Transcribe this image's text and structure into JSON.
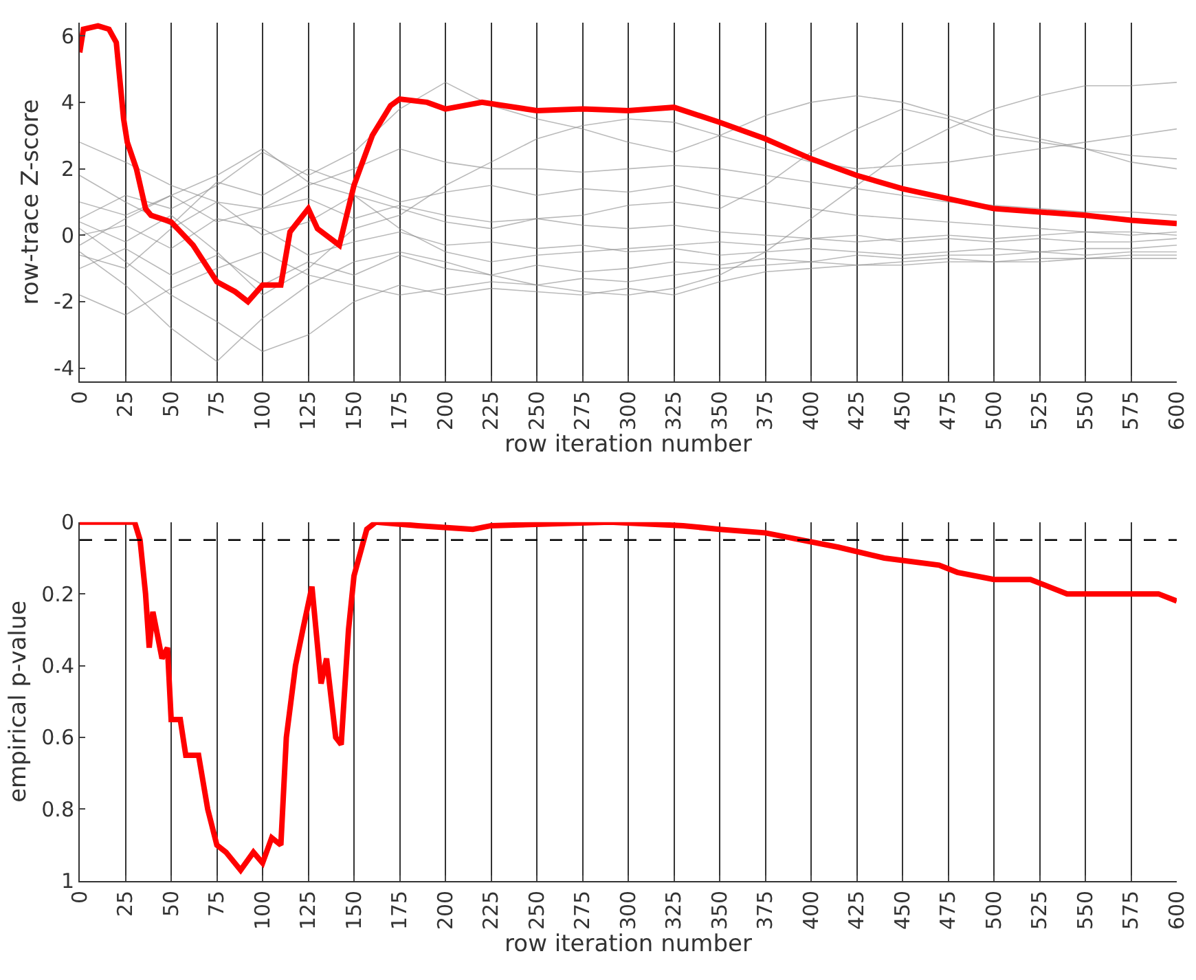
{
  "chart_data": [
    {
      "type": "line",
      "xlabel": "row iteration number",
      "ylabel": "row-trace Z-score",
      "xlim": [
        0,
        600
      ],
      "xticks": [
        0,
        25,
        50,
        75,
        100,
        125,
        150,
        175,
        200,
        225,
        250,
        275,
        300,
        325,
        350,
        375,
        400,
        425,
        450,
        475,
        500,
        525,
        550,
        575,
        600
      ],
      "ylim": [
        -4.4,
        6.4
      ],
      "yticks": [
        -4,
        -2,
        0,
        2,
        4,
        6
      ],
      "grid": "x",
      "series": [
        {
          "color": "#8c8c8c",
          "x": [
            0,
            25,
            50,
            75,
            100,
            125,
            150,
            175,
            200,
            225,
            250,
            275,
            300,
            325,
            350,
            375,
            400,
            425,
            450,
            475,
            500,
            525,
            550,
            575,
            600
          ],
          "values": [
            0.5,
            1.2,
            0.8,
            1.5,
            2.5,
            1.8,
            2.5,
            3.8,
            4.6,
            3.9,
            3.5,
            3.2,
            2.8,
            2.5,
            3.0,
            3.6,
            4.0,
            4.2,
            4.0,
            3.6,
            3.2,
            2.9,
            2.6,
            2.4,
            2.3
          ]
        },
        {
          "color": "#8c8c8c",
          "x": [
            0,
            25,
            50,
            75,
            100,
            125,
            150,
            175,
            200,
            225,
            250,
            275,
            300,
            325,
            350,
            375,
            400,
            425,
            450,
            475,
            500,
            525,
            550,
            575,
            600
          ],
          "values": [
            -0.5,
            -1.5,
            -2.8,
            -3.8,
            -2.5,
            -1.5,
            -0.8,
            -0.5,
            -0.8,
            -1.2,
            -1.5,
            -1.7,
            -1.8,
            -1.6,
            -1.2,
            -0.5,
            0.5,
            1.5,
            2.5,
            3.2,
            3.8,
            4.2,
            4.5,
            4.5,
            4.6
          ]
        },
        {
          "color": "#8c8c8c",
          "x": [
            0,
            25,
            50,
            75,
            100,
            125,
            150,
            175,
            200,
            225,
            250,
            275,
            300,
            325,
            350,
            375,
            400,
            425,
            450,
            475,
            500,
            525,
            550,
            575,
            600
          ],
          "values": [
            2.8,
            2.2,
            1.5,
            1.0,
            0.8,
            1.5,
            2.0,
            2.6,
            2.2,
            2.0,
            2.0,
            1.9,
            2.0,
            2.1,
            2.0,
            1.8,
            1.6,
            1.4,
            1.2,
            1.0,
            0.9,
            0.8,
            0.7,
            0.7,
            0.6
          ]
        },
        {
          "color": "#8c8c8c",
          "x": [
            0,
            25,
            50,
            75,
            100,
            125,
            150,
            175,
            200,
            225,
            250,
            275,
            300,
            325,
            350,
            375,
            400,
            425,
            450,
            475,
            500,
            525,
            550,
            575,
            600
          ],
          "values": [
            0.2,
            -0.8,
            -1.8,
            -2.6,
            -3.5,
            -3.0,
            -2.0,
            -1.5,
            -1.8,
            -1.6,
            -1.7,
            -1.8,
            -1.6,
            -1.8,
            -1.4,
            -1.1,
            -1.0,
            -0.9,
            -0.9,
            -0.8,
            -0.8,
            -0.8,
            -0.7,
            -0.7,
            -0.7
          ]
        },
        {
          "color": "#8c8c8c",
          "x": [
            0,
            25,
            50,
            75,
            100,
            125,
            150,
            175,
            200,
            225,
            250,
            275,
            300,
            325,
            350,
            375,
            400,
            425,
            450,
            475,
            500,
            525,
            550,
            575,
            600
          ],
          "values": [
            -0.3,
            0.5,
            1.2,
            1.8,
            2.6,
            1.6,
            1.2,
            0.8,
            0.4,
            0.2,
            0.5,
            0.6,
            0.9,
            1.0,
            0.8,
            1.5,
            2.5,
            3.2,
            3.8,
            3.5,
            3.0,
            2.8,
            2.6,
            2.2,
            2.0
          ]
        },
        {
          "color": "#8c8c8c",
          "x": [
            0,
            25,
            50,
            75,
            100,
            125,
            150,
            175,
            200,
            225,
            250,
            275,
            300,
            325,
            350,
            375,
            400,
            425,
            450,
            475,
            500,
            525,
            550,
            575,
            600
          ],
          "values": [
            0.0,
            0.3,
            -0.4,
            0.5,
            0.2,
            -0.6,
            -0.2,
            0.1,
            -0.3,
            -0.2,
            -0.4,
            -0.3,
            -0.5,
            -0.4,
            -0.6,
            -0.5,
            -0.4,
            -0.5,
            -0.6,
            -0.5,
            -0.4,
            -0.5,
            -0.4,
            -0.4,
            -0.3
          ]
        },
        {
          "color": "#8c8c8c",
          "x": [
            0,
            25,
            50,
            75,
            100,
            125,
            150,
            175,
            200,
            225,
            250,
            275,
            300,
            325,
            350,
            375,
            400,
            425,
            450,
            475,
            500,
            525,
            550,
            575,
            600
          ],
          "values": [
            1.0,
            0.6,
            1.2,
            0.4,
            0.8,
            1.1,
            0.5,
            0.9,
            0.6,
            0.4,
            0.5,
            0.3,
            0.2,
            0.3,
            0.1,
            0.0,
            -0.1,
            0.0,
            -0.2,
            -0.1,
            -0.2,
            -0.1,
            -0.2,
            -0.2,
            -0.1
          ]
        },
        {
          "color": "#8c8c8c",
          "x": [
            0,
            25,
            50,
            75,
            100,
            125,
            150,
            175,
            200,
            225,
            250,
            275,
            300,
            325,
            350,
            375,
            400,
            425,
            450,
            475,
            500,
            525,
            550,
            575,
            600
          ],
          "values": [
            -1.0,
            -0.4,
            -1.2,
            -0.6,
            -1.5,
            -0.8,
            -1.2,
            -0.6,
            -1.0,
            -1.2,
            -0.9,
            -1.1,
            -1.0,
            -0.8,
            -0.9,
            -0.7,
            -0.8,
            -0.6,
            -0.7,
            -0.6,
            -0.6,
            -0.5,
            -0.6,
            -0.5,
            -0.5
          ]
        },
        {
          "color": "#8c8c8c",
          "x": [
            0,
            25,
            50,
            75,
            100,
            125,
            150,
            175,
            200,
            225,
            250,
            275,
            300,
            325,
            350,
            375,
            400,
            425,
            450,
            475,
            500,
            525,
            550,
            575,
            600
          ],
          "values": [
            -1.8,
            -2.4,
            -1.6,
            -1.0,
            -0.5,
            -1.2,
            -1.5,
            -1.8,
            -1.6,
            -1.4,
            -1.5,
            -1.3,
            -1.4,
            -1.2,
            -1.0,
            -0.9,
            -0.8,
            -0.9,
            -0.8,
            -0.7,
            -0.8,
            -0.7,
            -0.7,
            -0.6,
            -0.6
          ]
        },
        {
          "color": "#8c8c8c",
          "x": [
            0,
            25,
            50,
            75,
            100,
            125,
            150,
            175,
            200,
            225,
            250,
            275,
            300,
            325,
            350,
            375,
            400,
            425,
            450,
            475,
            500,
            525,
            550,
            575,
            600
          ],
          "values": [
            1.8,
            1.0,
            0.3,
            1.6,
            1.2,
            2.0,
            1.5,
            1.0,
            1.3,
            1.5,
            1.2,
            1.4,
            1.3,
            1.5,
            1.2,
            1.0,
            0.8,
            0.6,
            0.5,
            0.4,
            0.3,
            0.2,
            0.1,
            0.1,
            0.0
          ]
        },
        {
          "color": "#8c8c8c",
          "x": [
            0,
            25,
            50,
            75,
            100,
            125,
            150,
            175,
            200,
            225,
            250,
            275,
            300,
            325,
            350,
            375,
            400,
            425,
            450,
            475,
            500,
            525,
            550,
            575,
            600
          ],
          "values": [
            0.4,
            -0.2,
            0.6,
            -0.5,
            -1.8,
            -1.0,
            0.2,
            0.6,
            1.5,
            2.2,
            2.9,
            3.3,
            3.5,
            3.4,
            3.0,
            2.6,
            2.2,
            2.0,
            2.1,
            2.2,
            2.4,
            2.6,
            2.8,
            3.0,
            3.2
          ]
        },
        {
          "color": "#8c8c8c",
          "x": [
            0,
            25,
            50,
            75,
            100,
            125,
            150,
            175,
            200,
            225,
            250,
            275,
            300,
            325,
            350,
            375,
            400,
            425,
            450,
            475,
            500,
            525,
            550,
            575,
            600
          ],
          "values": [
            -0.6,
            -1.0,
            0.2,
            1.0,
            0.0,
            0.4,
            1.2,
            0.2,
            -0.5,
            -0.8,
            -0.6,
            -0.5,
            -0.4,
            -0.3,
            -0.2,
            -0.3,
            -0.1,
            -0.2,
            -0.1,
            0.0,
            -0.1,
            0.0,
            0.1,
            0.0,
            0.1
          ]
        },
        {
          "color": "#ff0000",
          "x": [
            0,
            2,
            10,
            16,
            20,
            24,
            26,
            31,
            36,
            39,
            50,
            62,
            75,
            85,
            92,
            100,
            110,
            115,
            125,
            130,
            142,
            150,
            160,
            170,
            175,
            190,
            200,
            220,
            250,
            275,
            300,
            325,
            350,
            375,
            400,
            425,
            450,
            475,
            500,
            525,
            550,
            575,
            600
          ],
          "values": [
            5.5,
            6.2,
            6.3,
            6.2,
            5.8,
            3.5,
            2.8,
            2.0,
            0.8,
            0.6,
            0.4,
            -0.3,
            -1.4,
            -1.7,
            -2.0,
            -1.5,
            -1.5,
            0.1,
            0.8,
            0.2,
            -0.3,
            1.5,
            3.0,
            3.9,
            4.1,
            4.0,
            3.8,
            4.0,
            3.75,
            3.8,
            3.75,
            3.85,
            3.4,
            2.9,
            2.3,
            1.8,
            1.4,
            1.1,
            0.8,
            0.7,
            0.6,
            0.45,
            0.35
          ]
        }
      ]
    },
    {
      "type": "line",
      "xlabel": "row iteration number",
      "ylabel": "empirical p-value",
      "xlim": [
        0,
        600
      ],
      "xticks": [
        0,
        25,
        50,
        75,
        100,
        125,
        150,
        175,
        200,
        225,
        250,
        275,
        300,
        325,
        350,
        375,
        400,
        425,
        450,
        475,
        500,
        525,
        550,
        575,
        600
      ],
      "ylim": [
        1,
        0
      ],
      "yticks": [
        0,
        0.2,
        0.4,
        0.6,
        0.8,
        1
      ],
      "grid": "x",
      "ref_lines": [
        {
          "axis": "y",
          "value": 0.05,
          "color": "#000000",
          "line_style": "dashed"
        }
      ],
      "series": [
        {
          "color": "#ff0000",
          "x": [
            0,
            30,
            33,
            36,
            38,
            40,
            45,
            48,
            50,
            55,
            58,
            65,
            70,
            75,
            80,
            88,
            95,
            100,
            105,
            110,
            113,
            118,
            122,
            127,
            132,
            135,
            140,
            143,
            147,
            150,
            157,
            162,
            185,
            215,
            225,
            290,
            330,
            350,
            375,
            395,
            415,
            440,
            470,
            480,
            500,
            520,
            540,
            590,
            600
          ],
          "values": [
            0,
            0,
            0.05,
            0.2,
            0.35,
            0.25,
            0.38,
            0.35,
            0.55,
            0.55,
            0.65,
            0.65,
            0.8,
            0.9,
            0.92,
            0.97,
            0.92,
            0.95,
            0.88,
            0.9,
            0.6,
            0.4,
            0.3,
            0.18,
            0.45,
            0.38,
            0.6,
            0.62,
            0.3,
            0.15,
            0.02,
            0,
            0.01,
            0.02,
            0.01,
            0,
            0.01,
            0.02,
            0.03,
            0.05,
            0.07,
            0.1,
            0.12,
            0.14,
            0.16,
            0.16,
            0.2,
            0.2,
            0.22
          ]
        }
      ]
    }
  ]
}
